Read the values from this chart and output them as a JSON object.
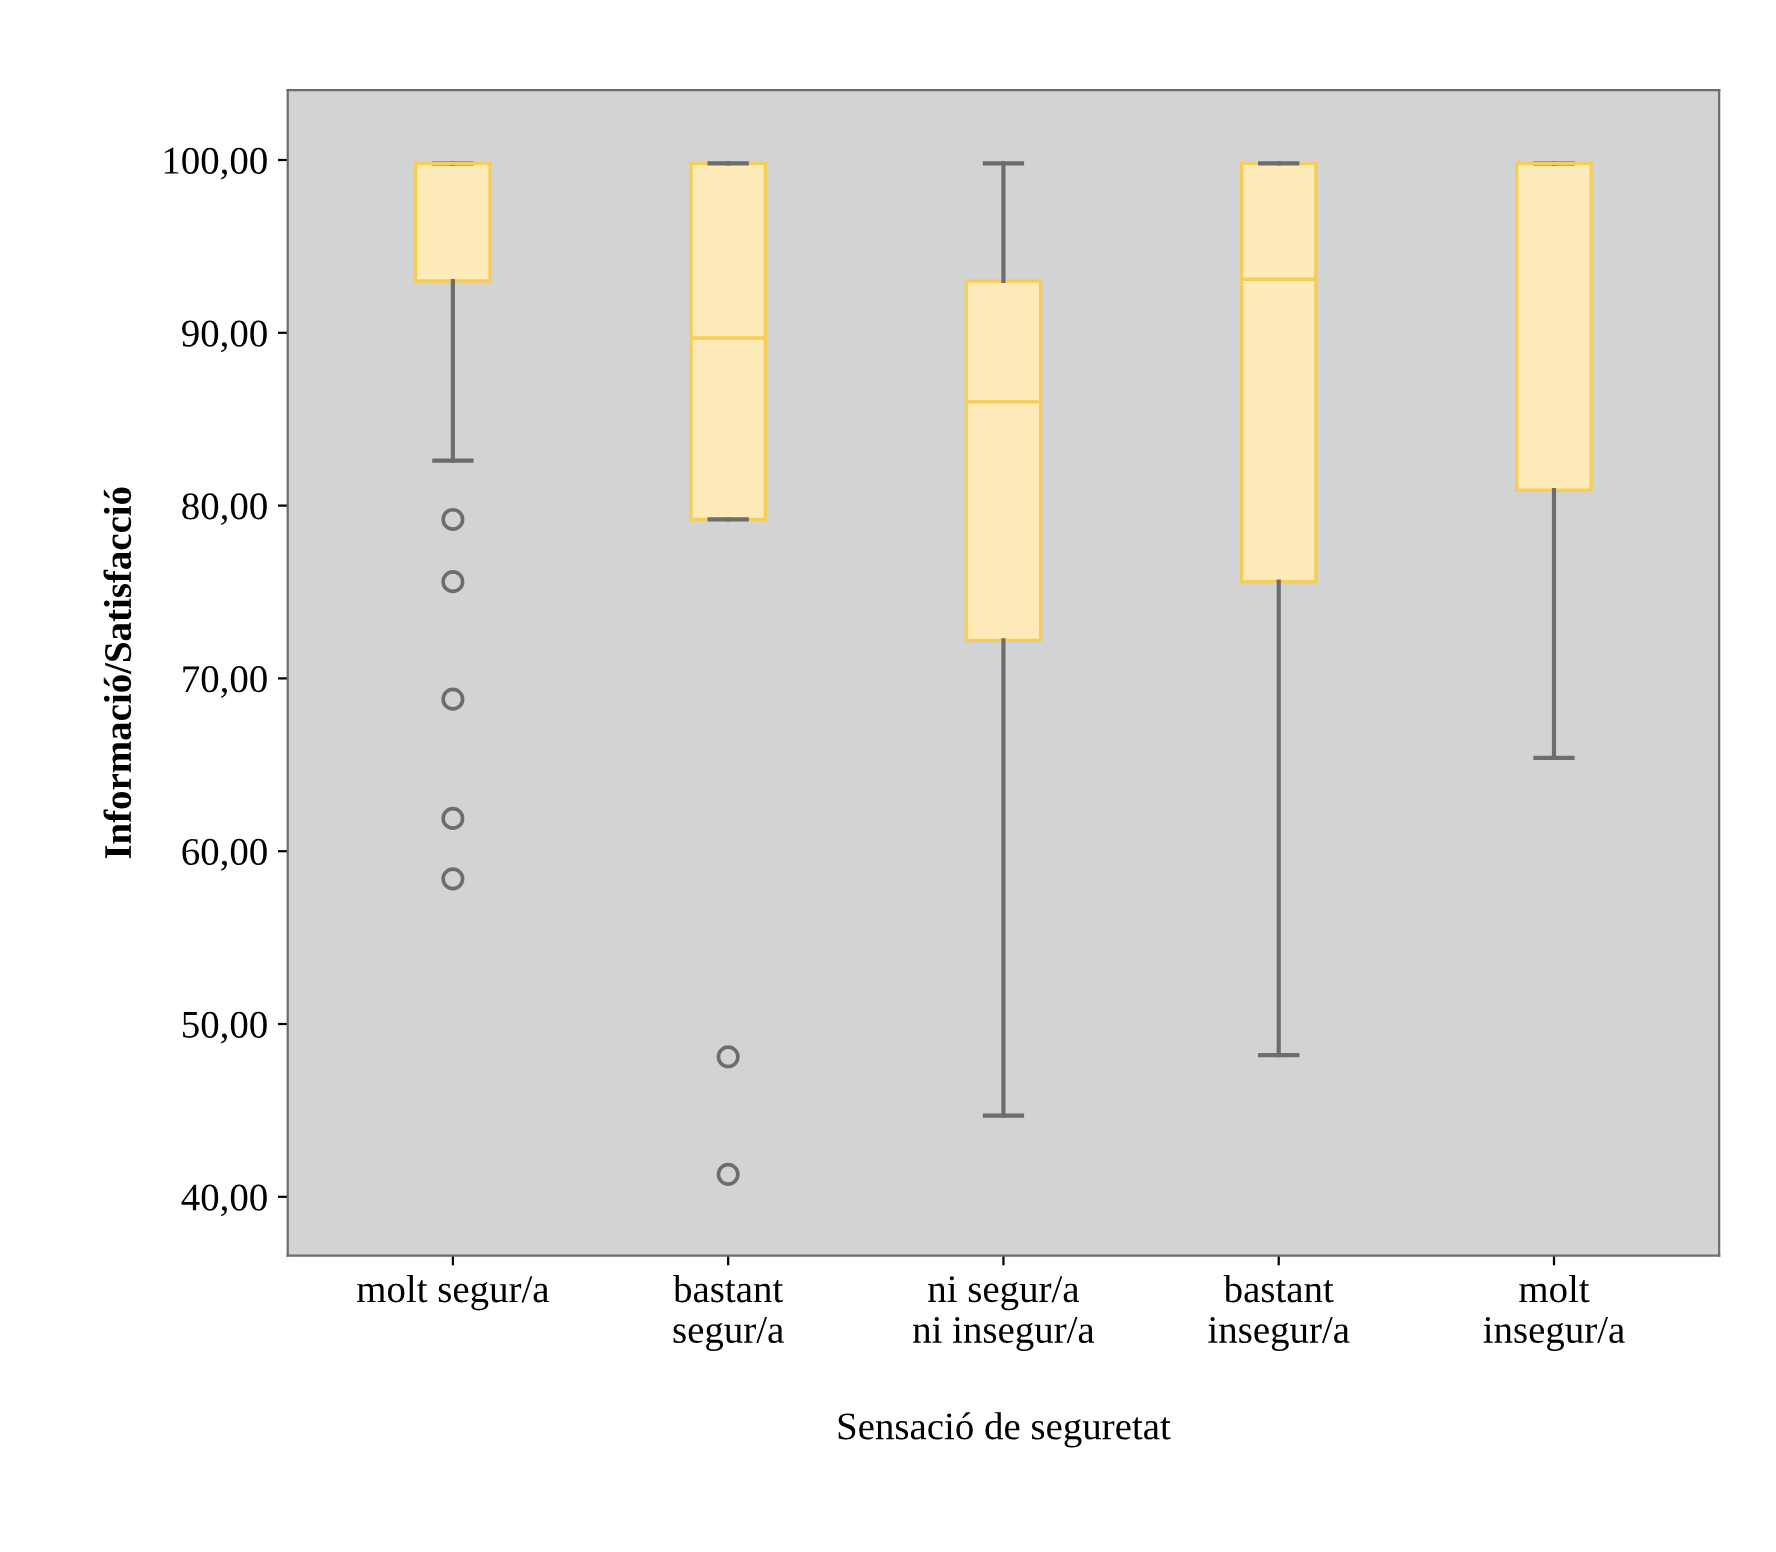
{
  "chart_data": {
    "type": "box",
    "xlabel": "Sensació de seguretat",
    "ylabel": "Informació/Satisfacció",
    "categories": [
      "molt segur/a",
      "bastant\nsegur/a",
      "ni segur/a\nni insegur/a",
      "bastant\ninsegur/a",
      "molt\ninsegur/a"
    ],
    "series": [
      {
        "color": "#ffeab9",
        "boxes": [
          {
            "low": 82.6,
            "q1": 93.0,
            "median": 99.8,
            "q3": 99.8,
            "high": 99.8,
            "outliers": [
              79.2,
              75.6,
              68.8,
              61.9,
              58.4
            ]
          },
          {
            "low": 79.2,
            "q1": 79.2,
            "median": 89.7,
            "q3": 99.8,
            "high": 99.8,
            "outliers": [
              48.1,
              41.3
            ]
          },
          {
            "low": 44.7,
            "q1": 72.2,
            "median": 86.0,
            "q3": 93.0,
            "high": 99.8
          },
          {
            "low": 48.2,
            "q1": 75.6,
            "median": 93.1,
            "q3": 99.8,
            "high": 99.8
          },
          {
            "low": 65.4,
            "q1": 80.9,
            "median": 99.8,
            "q3": 99.8,
            "high": 99.8
          }
        ]
      }
    ],
    "ylim": [
      36.6,
      104.05
    ],
    "yticks": [
      {
        "value": 40,
        "label": "40,00"
      },
      {
        "value": 50,
        "label": "50,00"
      },
      {
        "value": 60,
        "label": "60,00"
      },
      {
        "value": 70,
        "label": "70,00"
      },
      {
        "value": 80,
        "label": "80,00"
      },
      {
        "value": 90,
        "label": "90,00"
      },
      {
        "value": 100,
        "label": "100,00"
      }
    ],
    "grid": false,
    "legend": false
  }
}
